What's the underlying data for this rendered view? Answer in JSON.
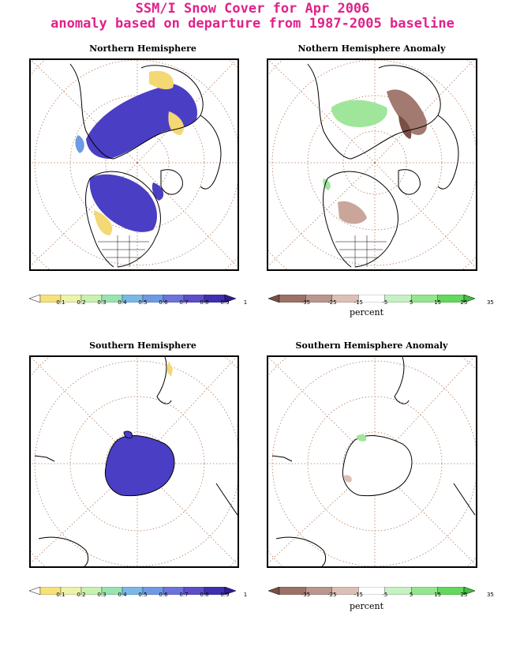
{
  "title": {
    "line1": "SSM/I Snow Cover for Apr 2006",
    "line2": "anomaly based on departure from 1987-2005 baseline"
  },
  "panels": {
    "nh": {
      "title": "Northern Hemisphere"
    },
    "nh_anom": {
      "title": "Nothern Hemisphere Anomaly"
    },
    "sh": {
      "title": "Southern Hemisphere"
    },
    "sh_anom": {
      "title": "Southern Hemisphere Anomaly"
    }
  },
  "colorbars": {
    "fraction": {
      "labels": [
        "0.1",
        "0.2",
        "0.3",
        "0.4",
        "0.5",
        "0.6",
        "0.7",
        "0.8",
        "0.9",
        "1"
      ],
      "colors": [
        "#ffffff",
        "#f7e27a",
        "#ecf2a8",
        "#c8f0b0",
        "#98e4b0",
        "#7ab8e8",
        "#6e9ae4",
        "#6c74dc",
        "#5c4ec8",
        "#3e30b0",
        "#2c1c9c"
      ]
    },
    "anomaly": {
      "labels": [
        "-35",
        "-25",
        "-15",
        "-5",
        "5",
        "15",
        "25",
        "35"
      ],
      "colors": [
        "#7a4f45",
        "#9c7268",
        "#bb968c",
        "#dcc0b6",
        "#ffffff",
        "#c6f1c3",
        "#94e58f",
        "#62d85c",
        "#3ec13a"
      ],
      "unit": "percent"
    }
  },
  "colors": {
    "title": "#e0218a",
    "snow_full": "#4a3ec4",
    "snow_partial": "#f3d874",
    "positive_anomaly": "#9fe69a",
    "negative_anomaly": "#a27a70"
  }
}
